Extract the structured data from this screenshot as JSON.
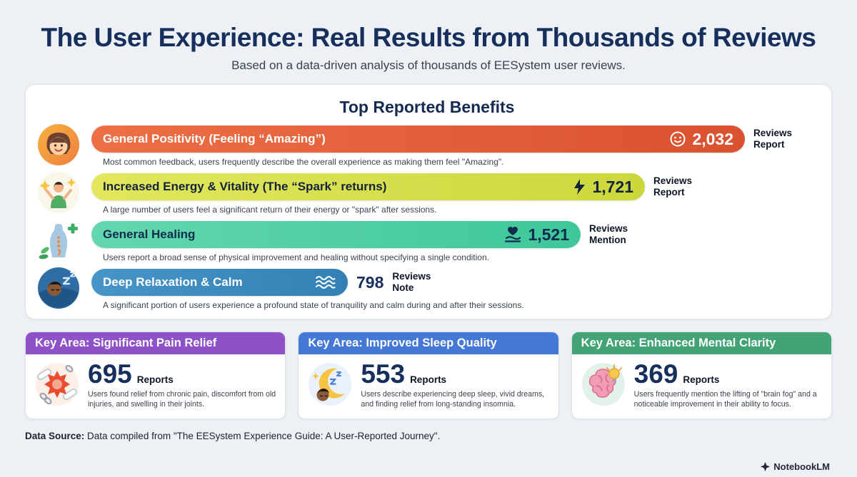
{
  "page": {
    "title": "The User Experience: Real Results from Thousands of Reviews",
    "subtitle": "Based on a data-driven analysis of thousands of EESystem user reviews.",
    "footer_label": "Data Source:",
    "footer_text": " Data compiled from \"The EESystem Experience Guide: A User-Reported Journey\".",
    "brand": "NotebookLM"
  },
  "benefits": {
    "heading": "Top Reported Benefits",
    "items": [
      {
        "label": "General Positivity (Feeling “Amazing”)",
        "value": "2,032",
        "value_num": 2032,
        "unit": "Reviews Report",
        "description": "Most common feedback, users frequently describe the overall experience as making them feel \"Amazing\".",
        "icon": "smiley-icon",
        "color_start": "#ec6f45",
        "color_end": "#da5130",
        "text_color": "#ffffff"
      },
      {
        "label": "Increased Energy & Vitality (The “Spark” returns)",
        "value": "1,721",
        "value_num": 1721,
        "unit": "Reviews Report",
        "description": "A large number of users feel a significant return of their energy or \"spark\" after sessions.",
        "icon": "lightning-icon",
        "color_start": "#e2e75e",
        "color_end": "#ccd73c",
        "text_color": "#14233c"
      },
      {
        "label": "General Healing",
        "value": "1,521",
        "value_num": 1521,
        "unit": "Reviews Mention",
        "description": "Users report a broad sense of physical improvement and healing without specifying a single condition.",
        "icon": "hand-heart-icon",
        "color_start": "#64d7af",
        "color_end": "#3ec79a",
        "text_color": "#0f2c4d"
      },
      {
        "label": "Deep Relaxation & Calm",
        "value": "798",
        "value_num": 798,
        "unit": "Reviews Note",
        "description": "A significant portion of users experience a profound state of tranquility and calm during and after their sessions.",
        "icon": "waves-icon",
        "color_start": "#4795c8",
        "color_end": "#3380b5",
        "text_color": "#ffffff"
      }
    ]
  },
  "key_areas": [
    {
      "header": "Key Area: Significant Pain Relief",
      "header_color": "#8f51c6",
      "value": "695",
      "value_num": 695,
      "reports_label": "Reports",
      "description": "Users found relief from chronic pain, discomfort from old injuries, and swelling in their joints.",
      "icon": "joint-pain-icon"
    },
    {
      "header": "Key Area: Improved Sleep Quality",
      "header_color": "#4478d4",
      "value": "553",
      "value_num": 553,
      "reports_label": "Reports",
      "description": "Users describe experiencing deep sleep, vivid dreams, and finding relief from long-standing insomnia.",
      "icon": "sleep-moon-icon"
    },
    {
      "header": "Key Area: Enhanced Mental Clarity",
      "header_color": "#43a377",
      "value": "369",
      "value_num": 369,
      "reports_label": "Reports",
      "description": "Users frequently mention the lifting of \"brain fog\" and a noticeable improvement in their ability to focus.",
      "icon": "brain-icon"
    }
  ],
  "chart_data": {
    "type": "bar",
    "orientation": "horizontal",
    "title": "Top Reported Benefits",
    "categories": [
      "General Positivity (Feeling “Amazing”)",
      "Increased Energy & Vitality (The “Spark” returns)",
      "General Healing",
      "Deep Relaxation & Calm"
    ],
    "values": [
      2032,
      1721,
      1521,
      798
    ],
    "value_labels": [
      "2,032",
      "1,721",
      "1,521",
      "798"
    ],
    "units": [
      "Reviews Report",
      "Reviews Report",
      "Reviews Mention",
      "Reviews Note"
    ],
    "bar_colors": [
      "#e0603a",
      "#d7e14e",
      "#50cfa5",
      "#3e8cc0"
    ],
    "xlim": [
      0,
      2032
    ],
    "grid": false,
    "legend": false,
    "secondary_series": {
      "name": "Key Areas (Reports)",
      "categories": [
        "Significant Pain Relief",
        "Improved Sleep Quality",
        "Enhanced Mental Clarity"
      ],
      "values": [
        695,
        553,
        369
      ]
    }
  }
}
